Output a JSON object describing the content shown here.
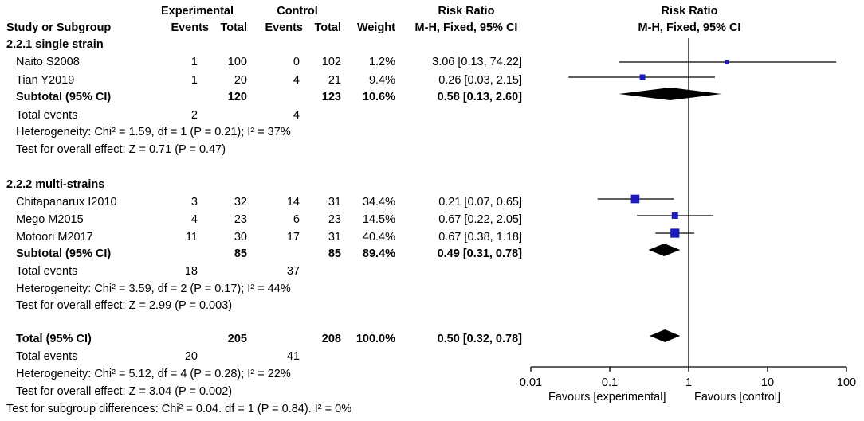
{
  "headers": {
    "experimental": "Experimental",
    "control": "Control",
    "risk_ratio_table": "Risk Ratio",
    "risk_ratio_plot": "Risk Ratio",
    "study_or_subgroup": "Study or Subgroup",
    "events_exp": "Events",
    "total_exp": "Total",
    "events_ctrl": "Events",
    "total_ctrl": "Total",
    "weight": "Weight",
    "method_table": "M-H, Fixed, 95% CI",
    "method_plot": "M-H, Fixed, 95% CI"
  },
  "subgroups": [
    {
      "title": "2.2.1 single strain",
      "studies": [
        {
          "name": "Naito S2008",
          "e_events": "1",
          "e_total": "100",
          "c_events": "0",
          "c_total": "102",
          "weight": "1.2%",
          "ci": "3.06 [0.13, 74.22]",
          "rr": 3.06,
          "lo": 0.13,
          "hi": 74.22,
          "w": 1.2
        },
        {
          "name": "Tian Y2019",
          "e_events": "1",
          "e_total": "20",
          "c_events": "4",
          "c_total": "21",
          "weight": "9.4%",
          "ci": "0.26 [0.03, 2.15]",
          "rr": 0.26,
          "lo": 0.03,
          "hi": 2.15,
          "w": 9.4
        }
      ],
      "subtotal": {
        "label": "Subtotal (95% CI)",
        "e_total": "120",
        "c_total": "123",
        "weight": "10.6%",
        "ci": "0.58 [0.13, 2.60]",
        "rr": 0.58,
        "lo": 0.13,
        "hi": 2.6
      },
      "total_events": {
        "label": "Total events",
        "e": "2",
        "c": "4"
      },
      "heterogeneity": "Heterogeneity: Chi² = 1.59, df = 1 (P = 0.21); I² = 37%",
      "overall_effect": "Test for overall effect: Z = 0.71 (P = 0.47)"
    },
    {
      "title": "2.2.2 multi-strains",
      "studies": [
        {
          "name": "Chitapanarux I2010",
          "e_events": "3",
          "e_total": "32",
          "c_events": "14",
          "c_total": "31",
          "weight": "34.4%",
          "ci": "0.21 [0.07, 0.65]",
          "rr": 0.21,
          "lo": 0.07,
          "hi": 0.65,
          "w": 34.4
        },
        {
          "name": "Mego M2015",
          "e_events": "4",
          "e_total": "23",
          "c_events": "6",
          "c_total": "23",
          "weight": "14.5%",
          "ci": "0.67 [0.22, 2.05]",
          "rr": 0.67,
          "lo": 0.22,
          "hi": 2.05,
          "w": 14.5
        },
        {
          "name": "Motoori M2017",
          "e_events": "11",
          "e_total": "30",
          "c_events": "17",
          "c_total": "31",
          "weight": "40.4%",
          "ci": "0.67 [0.38, 1.18]",
          "rr": 0.67,
          "lo": 0.38,
          "hi": 1.18,
          "w": 40.4
        }
      ],
      "subtotal": {
        "label": "Subtotal (95% CI)",
        "e_total": "85",
        "c_total": "85",
        "weight": "89.4%",
        "ci": "0.49 [0.31, 0.78]",
        "rr": 0.49,
        "lo": 0.31,
        "hi": 0.78
      },
      "total_events": {
        "label": "Total events",
        "e": "18",
        "c": "37"
      },
      "heterogeneity": "Heterogeneity: Chi² = 3.59, df = 2 (P = 0.17); I² = 44%",
      "overall_effect": "Test for overall effect: Z = 2.99 (P = 0.003)"
    }
  ],
  "total": {
    "label": "Total (95% CI)",
    "e_total": "205",
    "c_total": "208",
    "weight": "100.0%",
    "ci": "0.50 [0.32, 0.78]",
    "rr": 0.5,
    "lo": 0.32,
    "hi": 0.78
  },
  "total_events": {
    "label": "Total events",
    "e": "20",
    "c": "41"
  },
  "heterogeneity": "Heterogeneity: Chi² = 5.12, df = 4 (P = 0.28); I² = 22%",
  "overall_effect": "Test for overall effect: Z = 3.04 (P = 0.002)",
  "subgroup_differences": "Test for subgroup differences: Chi² = 0.04. df = 1 (P = 0.84). I² = 0%",
  "chart_data": {
    "type": "forest",
    "scale": "log",
    "xlim": [
      0.01,
      100
    ],
    "ticks": [
      {
        "value": 0.01,
        "label": "0.01"
      },
      {
        "value": 0.1,
        "label": "0.1"
      },
      {
        "value": 1,
        "label": "1"
      },
      {
        "value": 10,
        "label": "10"
      },
      {
        "value": 100,
        "label": "100"
      }
    ],
    "reference_line": 1,
    "favours_left": "Favours [experimental]",
    "favours_right": "Favours [control]",
    "colors": {
      "marker": "#1a1abf",
      "line": "#000000",
      "diamond": "#000000"
    }
  }
}
